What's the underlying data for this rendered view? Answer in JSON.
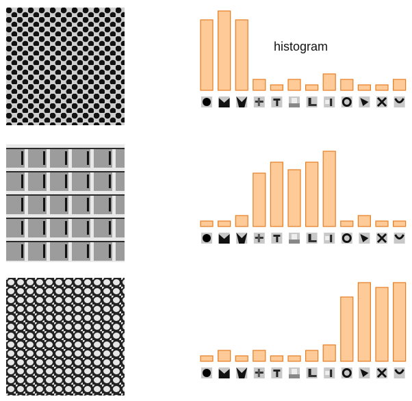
{
  "title_label": "histogram",
  "colors": {
    "bar_fill": "#FDCA98",
    "bar_stroke": "#E67E22"
  },
  "textures": [
    {
      "name": "dots-texture-icon"
    },
    {
      "name": "brick-grid-texture-icon"
    },
    {
      "name": "mesh-net-texture-icon"
    }
  ],
  "filter_icons": [
    "blob-filter",
    "v-shape-filter",
    "y-shape-filter",
    "grid-filter-a",
    "grid-filter-b",
    "bar-filter-a",
    "bar-filter-b",
    "bar-filter-c",
    "ring-filter",
    "corner-filter",
    "x-shape-filter",
    "curve-filter"
  ],
  "chart_data": [
    {
      "type": "bar",
      "title": "histogram",
      "values": [
        103,
        116,
        103,
        16,
        8,
        16,
        8,
        24,
        16,
        8,
        8,
        16
      ]
    },
    {
      "type": "bar",
      "title": "",
      "values": [
        8,
        8,
        16,
        78,
        94,
        83,
        94,
        110,
        8,
        16,
        8,
        8
      ]
    },
    {
      "type": "bar",
      "title": "",
      "values": [
        8,
        16,
        8,
        16,
        8,
        8,
        16,
        24,
        94,
        115,
        108,
        115
      ]
    }
  ]
}
